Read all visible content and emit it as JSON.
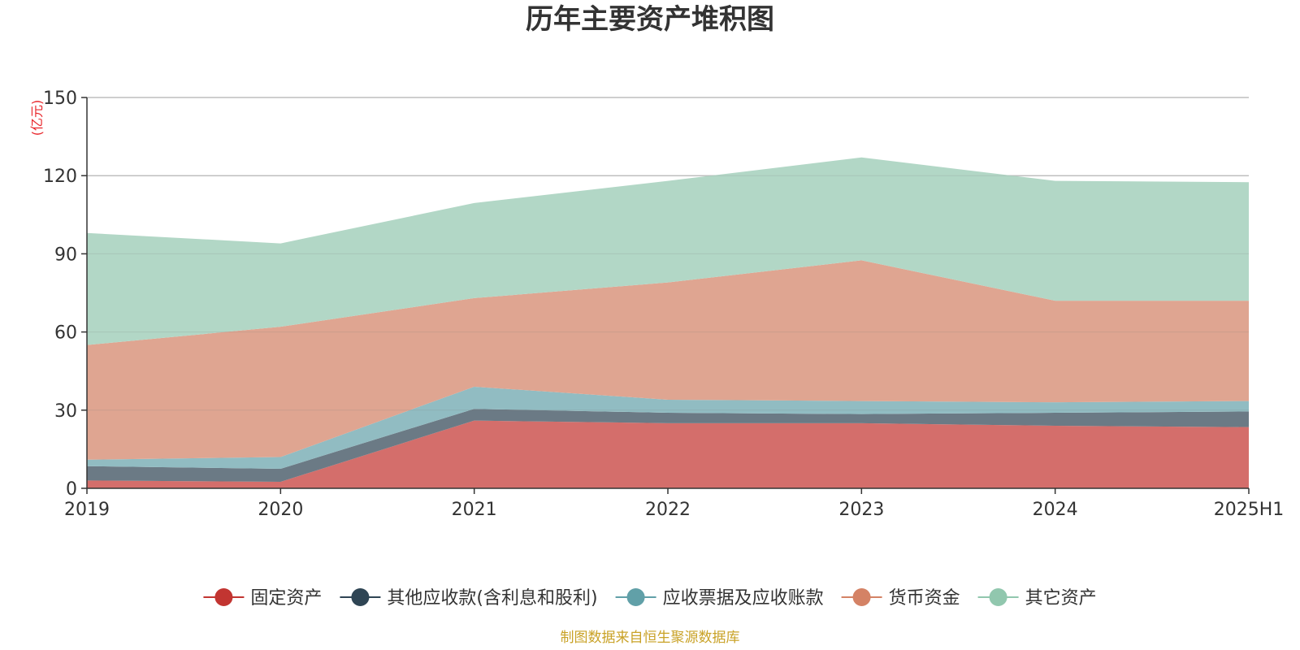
{
  "chart_data": {
    "type": "area",
    "stacked": true,
    "title": "历年主要资产堆积图",
    "unit_label": "(亿元)",
    "categories": [
      "2019",
      "2020",
      "2021",
      "2022",
      "2023",
      "2024",
      "2025H1"
    ],
    "ylim": [
      0,
      150
    ],
    "yticks": [
      "0",
      "30",
      "60",
      "90",
      "120",
      "150"
    ],
    "grid": true,
    "legend_position": "bottom",
    "series": [
      {
        "name": "固定资产",
        "color": "#d46e6b",
        "marker_color": "#c23531",
        "values": [
          3.0,
          2.5,
          26.0,
          25.0,
          25.0,
          24.0,
          23.5
        ]
      },
      {
        "name": "其他应收款(含利息和股利)",
        "color": "#6b7a85",
        "marker_color": "#2f4554",
        "values": [
          5.5,
          5.0,
          4.5,
          4.0,
          3.5,
          5.0,
          6.0
        ]
      },
      {
        "name": "应收票据及应收账款",
        "color": "#91bcc2",
        "marker_color": "#61a0a8",
        "values": [
          2.5,
          4.5,
          8.5,
          5.0,
          5.0,
          4.0,
          4.0
        ]
      },
      {
        "name": "货币资金",
        "color": "#dfa591",
        "marker_color": "#d48265",
        "values": [
          44.0,
          50.0,
          34.0,
          45.0,
          54.0,
          39.0,
          38.5
        ]
      },
      {
        "name": "其它资产",
        "color": "#b2d7c6",
        "marker_color": "#91c7ae",
        "values": [
          43.0,
          32.0,
          36.5,
          39.0,
          39.5,
          46.0,
          45.5
        ]
      }
    ]
  },
  "source": "制图数据来自恒生聚源数据库"
}
